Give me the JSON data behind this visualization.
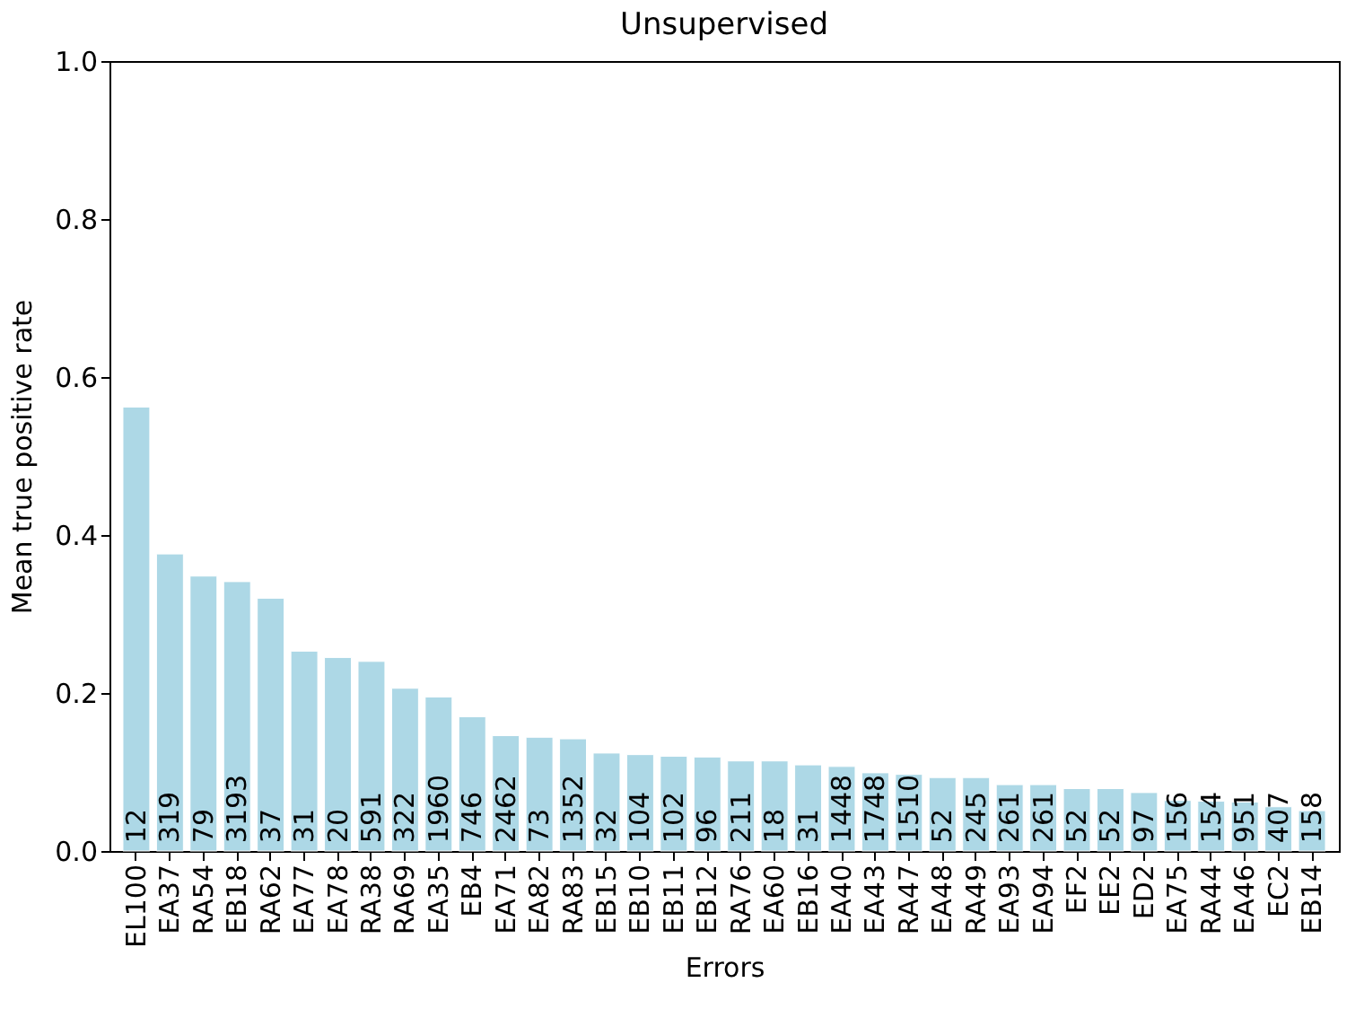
{
  "chart_data": {
    "type": "bar",
    "title": "Unsupervised",
    "xlabel": "Errors",
    "ylabel": "Mean true positive rate",
    "categories": [
      "EL100",
      "EA37",
      "RA54",
      "EB18",
      "RA62",
      "EA77",
      "EA78",
      "RA38",
      "RA69",
      "EA35",
      "EB4",
      "EA71",
      "EA82",
      "RA83",
      "EB15",
      "EB10",
      "EB11",
      "EB12",
      "RA76",
      "EA60",
      "EB16",
      "EA40",
      "EA43",
      "RA47",
      "EA48",
      "RA49",
      "EA93",
      "EA94",
      "EF2",
      "EE2",
      "ED2",
      "EA75",
      "RA44",
      "EA46",
      "EC2",
      "EB14"
    ],
    "values": [
      0.562,
      0.376,
      0.348,
      0.341,
      0.32,
      0.253,
      0.245,
      0.24,
      0.206,
      0.195,
      0.17,
      0.146,
      0.144,
      0.142,
      0.124,
      0.122,
      0.12,
      0.119,
      0.114,
      0.114,
      0.109,
      0.107,
      0.099,
      0.097,
      0.093,
      0.093,
      0.084,
      0.084,
      0.079,
      0.079,
      0.074,
      0.064,
      0.063,
      0.062,
      0.056,
      0.051
    ],
    "color": "#add8e6",
    "ylim": [
      0,
      1.0
    ],
    "yticks": [
      {
        "value": 0,
        "label": "0.0"
      },
      {
        "value": 0.2,
        "label": "0.2"
      },
      {
        "value": 0.4,
        "label": "0.4"
      },
      {
        "value": 0.6,
        "label": "0.6"
      },
      {
        "value": 0.8,
        "label": "0.8"
      },
      {
        "value": 1.0,
        "label": "1.0"
      }
    ],
    "grid": false,
    "annotations": [
      {
        "text": "12",
        "x": "EL100",
        "y": 0.01
      },
      {
        "text": "319",
        "x": "EA37",
        "y": 0.01
      },
      {
        "text": "79",
        "x": "RA54",
        "y": 0.01
      },
      {
        "text": "3193",
        "x": "EB18",
        "y": 0.01
      },
      {
        "text": "37",
        "x": "RA62",
        "y": 0.01
      },
      {
        "text": "31",
        "x": "EA77",
        "y": 0.01
      },
      {
        "text": "20",
        "x": "EA78",
        "y": 0.01
      },
      {
        "text": "591",
        "x": "RA38",
        "y": 0.01
      },
      {
        "text": "322",
        "x": "RA69",
        "y": 0.01
      },
      {
        "text": "1960",
        "x": "EA35",
        "y": 0.01
      },
      {
        "text": "746",
        "x": "EB4",
        "y": 0.01
      },
      {
        "text": "2462",
        "x": "EA71",
        "y": 0.01
      },
      {
        "text": "73",
        "x": "EA82",
        "y": 0.01
      },
      {
        "text": "1352",
        "x": "RA83",
        "y": 0.01
      },
      {
        "text": "32",
        "x": "EB15",
        "y": 0.01
      },
      {
        "text": "104",
        "x": "EB10",
        "y": 0.01
      },
      {
        "text": "102",
        "x": "EB11",
        "y": 0.01
      },
      {
        "text": "96",
        "x": "EB12",
        "y": 0.01
      },
      {
        "text": "211",
        "x": "RA76",
        "y": 0.01
      },
      {
        "text": "18",
        "x": "EA60",
        "y": 0.01
      },
      {
        "text": "31",
        "x": "EB16",
        "y": 0.01
      },
      {
        "text": "1448",
        "x": "EA40",
        "y": 0.01
      },
      {
        "text": "1748",
        "x": "EA43",
        "y": 0.01
      },
      {
        "text": "1510",
        "x": "RA47",
        "y": 0.01
      },
      {
        "text": "52",
        "x": "EA48",
        "y": 0.01
      },
      {
        "text": "245",
        "x": "RA49",
        "y": 0.01
      },
      {
        "text": "261",
        "x": "EA93",
        "y": 0.01
      },
      {
        "text": "261",
        "x": "EA94",
        "y": 0.01
      },
      {
        "text": "52",
        "x": "EF2",
        "y": 0.01
      },
      {
        "text": "52",
        "x": "EE2",
        "y": 0.01
      },
      {
        "text": "97",
        "x": "ED2",
        "y": 0.01
      },
      {
        "text": "156",
        "x": "EA75",
        "y": 0.01
      },
      {
        "text": "154",
        "x": "RA44",
        "y": 0.01
      },
      {
        "text": "951",
        "x": "EA46",
        "y": 0.01
      },
      {
        "text": "407",
        "x": "EC2",
        "y": 0.01
      },
      {
        "text": "158",
        "x": "EB14",
        "y": 0.01
      }
    ]
  }
}
